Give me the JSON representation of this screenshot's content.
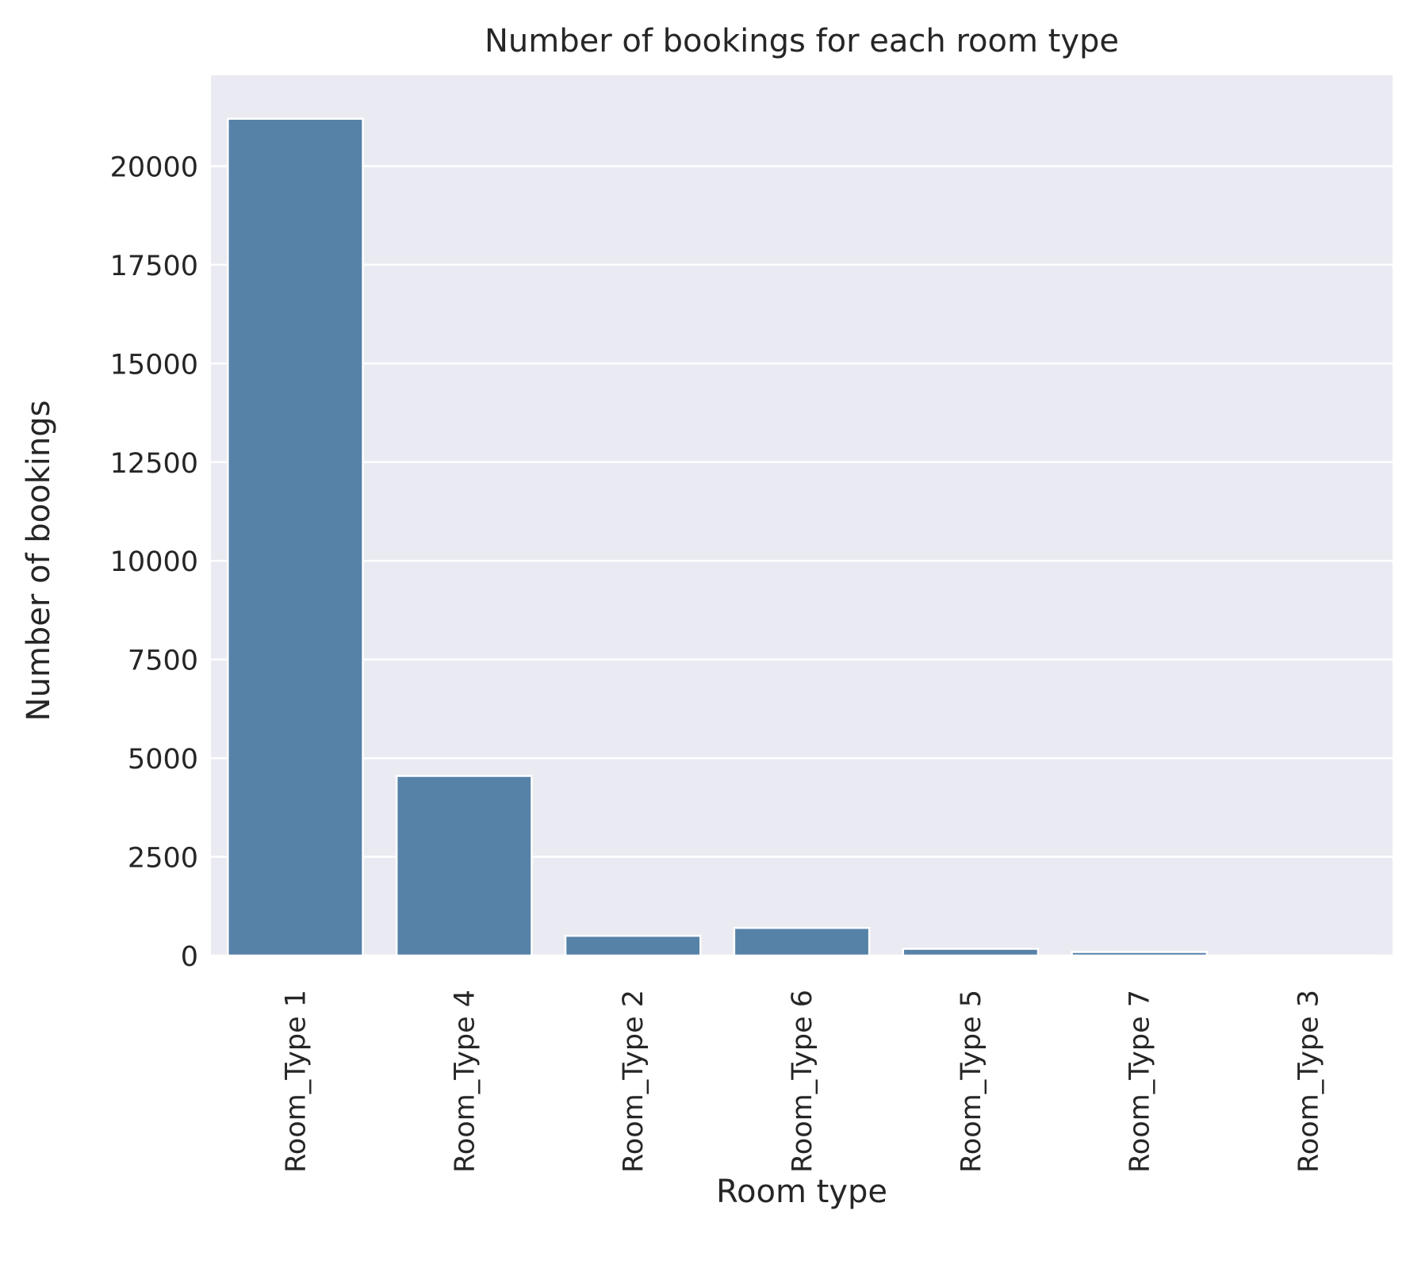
{
  "chart_data": {
    "type": "bar",
    "title": "Number of bookings for each room type",
    "xlabel": "Room type",
    "ylabel": "Number of bookings",
    "categories": [
      "Room_Type 1",
      "Room_Type 4",
      "Room_Type 2",
      "Room_Type 6",
      "Room_Type 5",
      "Room_Type 7",
      "Room_Type 3"
    ],
    "values": [
      21200,
      4550,
      500,
      700,
      170,
      90,
      5
    ],
    "yticks": [
      0,
      2500,
      5000,
      7500,
      10000,
      12500,
      15000,
      17500,
      20000
    ],
    "ylim": [
      0,
      22300
    ],
    "grid": true,
    "bar_color": "#5682a8",
    "background_color": "#eaeaf2",
    "grid_color": "#ffffff"
  }
}
